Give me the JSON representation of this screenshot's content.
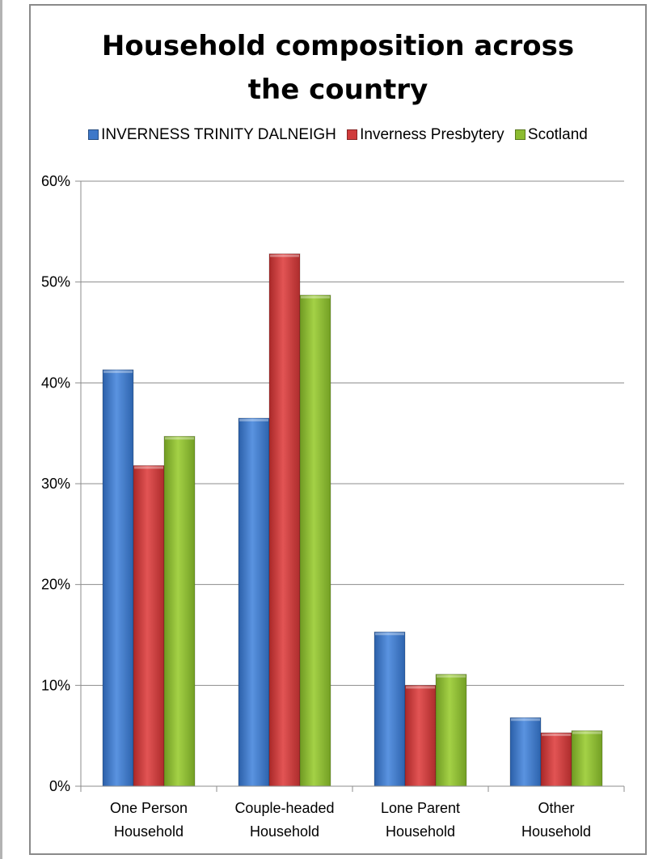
{
  "chart_data": {
    "type": "bar",
    "title_lines": [
      "Household composition across",
      "the country"
    ],
    "categories": [
      [
        "One Person",
        "Household"
      ],
      [
        "Couple-headed",
        "Household"
      ],
      [
        "Lone Parent",
        "Household"
      ],
      [
        "Other",
        "Household"
      ]
    ],
    "series": [
      {
        "name": "INVERNESS TRINITY DALNEIGH",
        "color": "#3d78c9",
        "values": [
          41.3,
          36.5,
          15.3,
          6.8
        ]
      },
      {
        "name": "Inverness Presbytery",
        "color": "#d03b3b",
        "values": [
          31.8,
          52.8,
          10.0,
          5.3
        ]
      },
      {
        "name": "Scotland",
        "color": "#8cbc31",
        "values": [
          34.7,
          48.7,
          11.1,
          5.5
        ]
      }
    ],
    "ylim": [
      0,
      60
    ],
    "yticks": [
      0,
      10,
      20,
      30,
      40,
      50,
      60
    ],
    "ytick_labels": [
      "0%",
      "10%",
      "20%",
      "30%",
      "40%",
      "50%",
      "60%"
    ],
    "grid": true,
    "legend_position": "top"
  }
}
